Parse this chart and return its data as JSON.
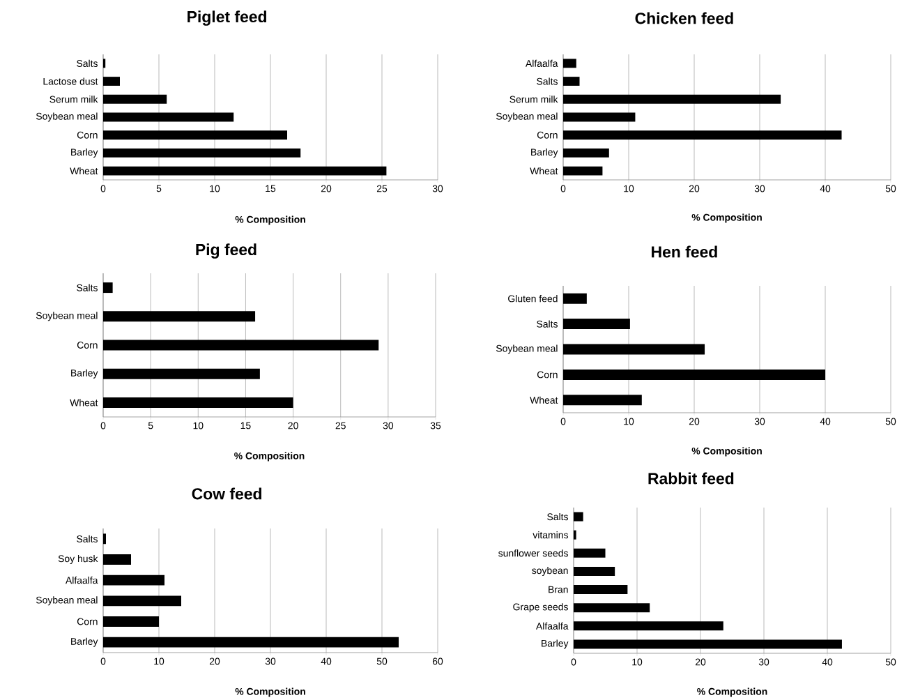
{
  "chart_data": [
    {
      "type": "bar",
      "orientation": "horizontal",
      "title": "Piglet feed",
      "xlabel": "% Composition",
      "categories": [
        "Salts",
        "Lactose dust",
        "Serum milk",
        "Soybean meal",
        "Corn",
        "Barley",
        "Wheat"
      ],
      "values": [
        0.2,
        1.5,
        5.7,
        11.7,
        16.5,
        17.7,
        25.4
      ],
      "color": "#000000",
      "xlim": [
        0,
        30
      ],
      "xticks": [
        0,
        5,
        10,
        15,
        20,
        25,
        30
      ],
      "grid": "x"
    },
    {
      "type": "bar",
      "orientation": "horizontal",
      "title": "Chicken feed",
      "xlabel": "% Composition",
      "categories": [
        "Alfaalfa",
        "Salts",
        "Serum milk",
        "Soybean meal",
        "Corn",
        "Barley",
        "Wheat"
      ],
      "values": [
        2,
        2.5,
        33.2,
        11,
        42.5,
        7,
        6
      ],
      "color": "#000000",
      "xlim": [
        0,
        50
      ],
      "xticks": [
        0,
        10,
        20,
        30,
        40,
        50
      ],
      "grid": "x"
    },
    {
      "type": "bar",
      "orientation": "horizontal",
      "title": "Pig feed",
      "xlabel": "% Composition",
      "categories": [
        "Salts",
        "Soybean meal",
        "Corn",
        "Barley",
        "Wheat"
      ],
      "values": [
        1,
        16,
        29,
        16.5,
        20
      ],
      "color": "#000000",
      "xlim": [
        0,
        35
      ],
      "xticks": [
        0,
        5,
        10,
        15,
        20,
        25,
        30,
        35
      ],
      "grid": "x"
    },
    {
      "type": "bar",
      "orientation": "horizontal",
      "title": "Hen feed",
      "xlabel": "% Composition",
      "categories": [
        "Gluten feed",
        "Salts",
        "Soybean meal",
        "Corn",
        "Wheat"
      ],
      "values": [
        3.6,
        10.2,
        21.6,
        40,
        12
      ],
      "color": "#000000",
      "xlim": [
        0,
        50
      ],
      "xticks": [
        0,
        10,
        20,
        30,
        40,
        50
      ],
      "grid": "x"
    },
    {
      "type": "bar",
      "orientation": "horizontal",
      "title": "Cow feed",
      "xlabel": "% Composition",
      "categories": [
        "Salts",
        "Soy husk",
        "Alfaalfa",
        "Soybean meal",
        "Corn",
        "Barley"
      ],
      "values": [
        0.5,
        5,
        11,
        14,
        10,
        53
      ],
      "color": "#000000",
      "xlim": [
        0,
        60
      ],
      "xticks": [
        0,
        10,
        20,
        30,
        40,
        50,
        60
      ],
      "grid": "x"
    },
    {
      "type": "bar",
      "orientation": "horizontal",
      "title": "Rabbit feed",
      "xlabel": "% Composition",
      "categories": [
        "Salts",
        "vitamins",
        "sunflower seeds",
        "soybean",
        "Bran",
        "Grape seeds",
        "Alfaalfa",
        "Barley"
      ],
      "values": [
        1.5,
        0.4,
        5,
        6.5,
        8.5,
        12,
        23.6,
        42.3
      ],
      "color": "#000000",
      "xlim": [
        0,
        50
      ],
      "xticks": [
        0,
        10,
        20,
        30,
        40,
        50
      ],
      "grid": "x"
    }
  ]
}
